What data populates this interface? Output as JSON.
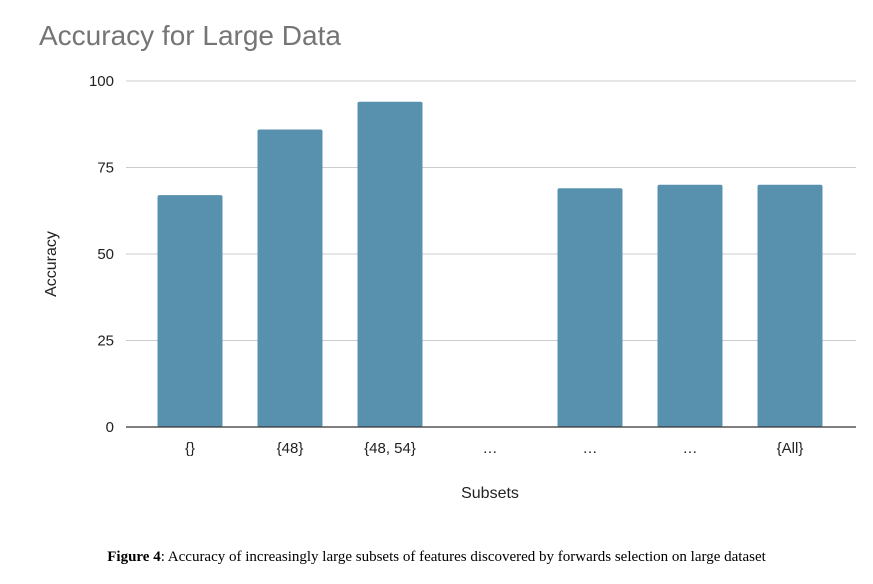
{
  "chart_data": {
    "type": "bar",
    "title": "Accuracy for Large Data",
    "xlabel": "Subsets",
    "ylabel": "Accuracy",
    "categories": [
      "{}",
      "{48}",
      "{48, 54}",
      "…",
      "…",
      "…",
      "{All}"
    ],
    "values": [
      67,
      86,
      94,
      null,
      69,
      70,
      70
    ],
    "ylim": [
      0,
      100
    ],
    "yticks": [
      0,
      25,
      50,
      75,
      100
    ],
    "grid": true,
    "colors": {
      "bar": "#5891ad",
      "grid": "#cccccc",
      "axis": "#333333",
      "title": "#757575"
    }
  },
  "caption": {
    "label": "Figure 4",
    "text": ": Accuracy of increasingly large subsets of features discovered by forwards selection on large dataset"
  }
}
